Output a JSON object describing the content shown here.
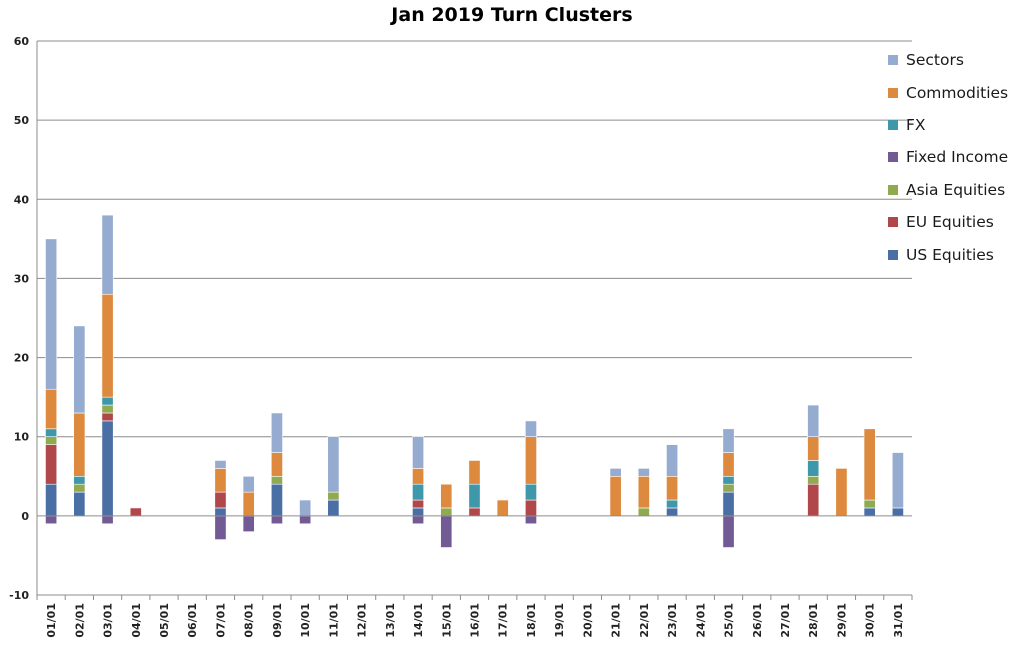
{
  "chart_data": {
    "type": "bar",
    "stacked": true,
    "title": "Jan 2019 Turn Clusters",
    "xlabel": "",
    "ylabel": "",
    "ylim": [
      -10,
      60
    ],
    "yticks": [
      -10,
      0,
      10,
      20,
      30,
      40,
      50,
      60
    ],
    "grid": true,
    "legend_position": "right",
    "categories": [
      "01/01",
      "02/01",
      "03/01",
      "04/01",
      "05/01",
      "06/01",
      "07/01",
      "08/01",
      "09/01",
      "10/01",
      "11/01",
      "12/01",
      "13/01",
      "14/01",
      "15/01",
      "16/01",
      "17/01",
      "18/01",
      "19/01",
      "20/01",
      "21/01",
      "22/01",
      "23/01",
      "24/01",
      "25/01",
      "26/01",
      "27/01",
      "28/01",
      "29/01",
      "30/01",
      "31/01"
    ],
    "series": [
      {
        "name": "US Equities",
        "color": "#4a6fa5",
        "values": [
          4,
          3,
          12,
          0,
          0,
          0,
          1,
          0,
          4,
          0,
          2,
          0,
          0,
          1,
          0,
          0,
          0,
          0,
          0,
          0,
          0,
          0,
          1,
          0,
          3,
          0,
          0,
          0,
          0,
          1,
          1
        ]
      },
      {
        "name": "EU Equities",
        "color": "#b0474a",
        "values": [
          5,
          0,
          1,
          1,
          0,
          0,
          2,
          0,
          0,
          0,
          0,
          0,
          0,
          1,
          0,
          1,
          0,
          2,
          0,
          0,
          0,
          0,
          0,
          0,
          0,
          0,
          0,
          4,
          0,
          0,
          0
        ]
      },
      {
        "name": "Asia Equities",
        "color": "#8faa50",
        "values": [
          1,
          1,
          1,
          0,
          0,
          0,
          0,
          0,
          1,
          0,
          1,
          0,
          0,
          0,
          1,
          0,
          0,
          0,
          0,
          0,
          0,
          1,
          0,
          0,
          1,
          0,
          0,
          1,
          0,
          1,
          0
        ]
      },
      {
        "name": "Fixed Income",
        "color": "#725b94",
        "values": [
          -1,
          0,
          -1,
          0,
          0,
          0,
          -3,
          -2,
          -1,
          -1,
          0,
          0,
          0,
          -1,
          -4,
          0,
          0,
          -1,
          0,
          0,
          0,
          0,
          0,
          0,
          -4,
          0,
          0,
          0,
          0,
          0,
          0
        ]
      },
      {
        "name": "FX",
        "color": "#3f98aa",
        "values": [
          1,
          1,
          1,
          0,
          0,
          0,
          0,
          0,
          0,
          0,
          0,
          0,
          0,
          2,
          0,
          3,
          0,
          2,
          0,
          0,
          0,
          0,
          1,
          0,
          1,
          0,
          0,
          2,
          0,
          0,
          0
        ]
      },
      {
        "name": "Commodities",
        "color": "#dd8a3e",
        "values": [
          5,
          8,
          13,
          0,
          0,
          0,
          3,
          3,
          3,
          0,
          0,
          0,
          0,
          2,
          3,
          3,
          2,
          6,
          0,
          0,
          5,
          4,
          3,
          0,
          3,
          0,
          0,
          3,
          6,
          9,
          0
        ]
      },
      {
        "name": "Sectors",
        "color": "#95abd0",
        "values": [
          19,
          11,
          10,
          0,
          0,
          0,
          1,
          2,
          5,
          2,
          7,
          0,
          0,
          4,
          0,
          0,
          0,
          2,
          0,
          0,
          1,
          1,
          4,
          0,
          3,
          0,
          0,
          4,
          0,
          0,
          7
        ]
      }
    ],
    "legend_order": [
      "Sectors",
      "Commodities",
      "FX",
      "Fixed Income",
      "Asia Equities",
      "EU Equities",
      "US Equities"
    ]
  }
}
